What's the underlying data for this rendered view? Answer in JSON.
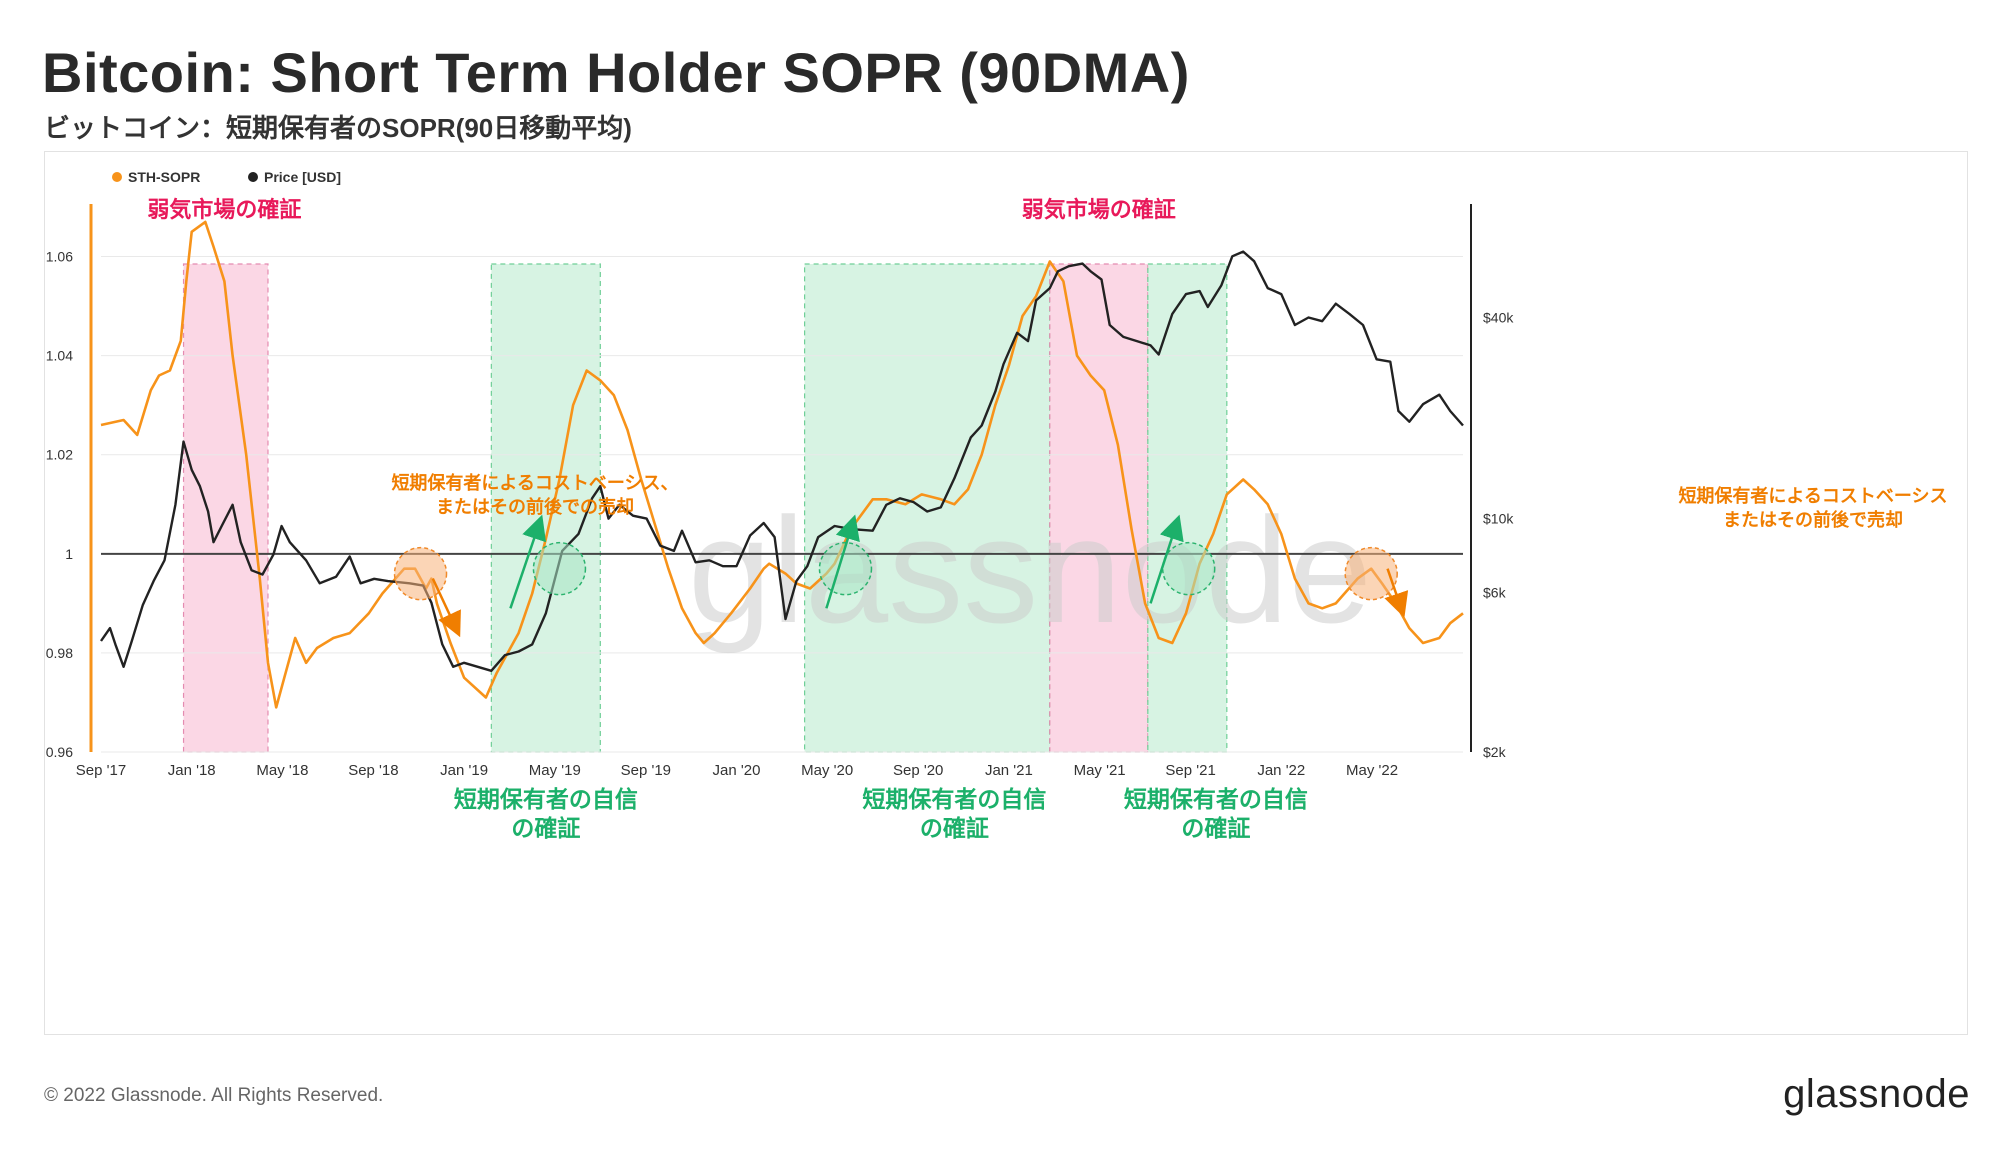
{
  "header": {
    "title": "Bitcoin: Short Term Holder SOPR (90DMA)",
    "subtitle": "ビットコイン：短期保有者のSOPR(90日移動平均)"
  },
  "footer": {
    "copyright": "© 2022 Glassnode. All Rights Reserved.",
    "logo": "glassnode"
  },
  "chart_data": {
    "type": "line",
    "title": "Bitcoin: Short Term Holder SOPR (90DMA)",
    "watermark": "glassnode",
    "x_range": [
      2017.667,
      2022.667
    ],
    "xticks": [
      {
        "label": "Sep '17",
        "t": 2017.667
      },
      {
        "label": "Jan '18",
        "t": 2018.0
      },
      {
        "label": "May '18",
        "t": 2018.333
      },
      {
        "label": "Sep '18",
        "t": 2018.667
      },
      {
        "label": "Jan '19",
        "t": 2019.0
      },
      {
        "label": "May '19",
        "t": 2019.333
      },
      {
        "label": "Sep '19",
        "t": 2019.667
      },
      {
        "label": "Jan '20",
        "t": 2020.0
      },
      {
        "label": "May '20",
        "t": 2020.333
      },
      {
        "label": "Sep '20",
        "t": 2020.667
      },
      {
        "label": "Jan '21",
        "t": 2021.0
      },
      {
        "label": "May '21",
        "t": 2021.333
      },
      {
        "label": "Sep '21",
        "t": 2021.667
      },
      {
        "label": "Jan '22",
        "t": 2022.0
      },
      {
        "label": "May '22",
        "t": 2022.333
      }
    ],
    "left_axis": {
      "ylim": [
        0.96,
        1.07
      ],
      "ticks": [
        {
          "v": 0.96,
          "label": "0.96"
        },
        {
          "v": 0.98,
          "label": "0.98"
        },
        {
          "v": 1.0,
          "label": "1"
        },
        {
          "v": 1.02,
          "label": "1.02"
        },
        {
          "v": 1.04,
          "label": "1.04"
        },
        {
          "v": 1.06,
          "label": "1.06"
        }
      ]
    },
    "right_axis": {
      "scale": "log",
      "ylim": [
        2000,
        80000
      ],
      "ticks": [
        {
          "v": 2000,
          "label": "$2k"
        },
        {
          "v": 6000,
          "label": "$6k"
        },
        {
          "v": 10000,
          "label": "$10k"
        },
        {
          "v": 40000,
          "label": "$40k"
        }
      ]
    },
    "reference_line": 1.0,
    "legend": [
      {
        "name": "STH-SOPR",
        "color": "#f7931a"
      },
      {
        "name": "Price [USD]",
        "color": "#222222"
      }
    ],
    "series": [
      {
        "name": "STH-SOPR",
        "color": "#f7931a",
        "axis": "left",
        "points": [
          [
            2017.667,
            1.026
          ],
          [
            2017.75,
            1.027
          ],
          [
            2017.8,
            1.024
          ],
          [
            2017.85,
            1.033
          ],
          [
            2017.88,
            1.036
          ],
          [
            2017.92,
            1.037
          ],
          [
            2017.96,
            1.043
          ],
          [
            2017.98,
            1.055
          ],
          [
            2018.0,
            1.065
          ],
          [
            2018.05,
            1.067
          ],
          [
            2018.08,
            1.062
          ],
          [
            2018.12,
            1.055
          ],
          [
            2018.15,
            1.04
          ],
          [
            2018.2,
            1.02
          ],
          [
            2018.25,
            0.995
          ],
          [
            2018.28,
            0.978
          ],
          [
            2018.31,
            0.969
          ],
          [
            2018.34,
            0.975
          ],
          [
            2018.38,
            0.983
          ],
          [
            2018.42,
            0.978
          ],
          [
            2018.46,
            0.981
          ],
          [
            2018.52,
            0.983
          ],
          [
            2018.58,
            0.984
          ],
          [
            2018.65,
            0.988
          ],
          [
            2018.7,
            0.992
          ],
          [
            2018.78,
            0.997
          ],
          [
            2018.82,
            0.997
          ],
          [
            2018.86,
            0.993
          ],
          [
            2018.88,
            0.995
          ],
          [
            2018.9,
            0.99
          ],
          [
            2018.95,
            0.982
          ],
          [
            2019.0,
            0.975
          ],
          [
            2019.08,
            0.971
          ],
          [
            2019.12,
            0.976
          ],
          [
            2019.2,
            0.984
          ],
          [
            2019.25,
            0.992
          ],
          [
            2019.3,
            1.003
          ],
          [
            2019.35,
            1.015
          ],
          [
            2019.4,
            1.03
          ],
          [
            2019.45,
            1.037
          ],
          [
            2019.5,
            1.035
          ],
          [
            2019.55,
            1.032
          ],
          [
            2019.6,
            1.025
          ],
          [
            2019.65,
            1.015
          ],
          [
            2019.7,
            1.006
          ],
          [
            2019.75,
            0.997
          ],
          [
            2019.8,
            0.989
          ],
          [
            2019.85,
            0.984
          ],
          [
            2019.88,
            0.982
          ],
          [
            2019.92,
            0.984
          ],
          [
            2019.98,
            0.988
          ],
          [
            2020.05,
            0.993
          ],
          [
            2020.1,
            0.997
          ],
          [
            2020.12,
            0.998
          ],
          [
            2020.18,
            0.996
          ],
          [
            2020.22,
            0.994
          ],
          [
            2020.27,
            0.993
          ],
          [
            2020.33,
            0.996
          ],
          [
            2020.36,
            0.998
          ],
          [
            2020.42,
            1.005
          ],
          [
            2020.5,
            1.011
          ],
          [
            2020.55,
            1.011
          ],
          [
            2020.62,
            1.01
          ],
          [
            2020.68,
            1.012
          ],
          [
            2020.75,
            1.011
          ],
          [
            2020.8,
            1.01
          ],
          [
            2020.85,
            1.013
          ],
          [
            2020.9,
            1.02
          ],
          [
            2020.95,
            1.03
          ],
          [
            2021.0,
            1.038
          ],
          [
            2021.05,
            1.048
          ],
          [
            2021.1,
            1.052
          ],
          [
            2021.15,
            1.059
          ],
          [
            2021.2,
            1.055
          ],
          [
            2021.25,
            1.04
          ],
          [
            2021.3,
            1.036
          ],
          [
            2021.35,
            1.033
          ],
          [
            2021.4,
            1.022
          ],
          [
            2021.45,
            1.005
          ],
          [
            2021.5,
            0.99
          ],
          [
            2021.55,
            0.983
          ],
          [
            2021.6,
            0.982
          ],
          [
            2021.65,
            0.988
          ],
          [
            2021.7,
            0.998
          ],
          [
            2021.75,
            1.004
          ],
          [
            2021.8,
            1.012
          ],
          [
            2021.86,
            1.015
          ],
          [
            2021.9,
            1.013
          ],
          [
            2021.95,
            1.01
          ],
          [
            2022.0,
            1.004
          ],
          [
            2022.05,
            0.995
          ],
          [
            2022.1,
            0.99
          ],
          [
            2022.15,
            0.989
          ],
          [
            2022.2,
            0.99
          ],
          [
            2022.28,
            0.995
          ],
          [
            2022.33,
            0.997
          ],
          [
            2022.37,
            0.994
          ],
          [
            2022.42,
            0.99
          ],
          [
            2022.47,
            0.985
          ],
          [
            2022.52,
            0.982
          ],
          [
            2022.58,
            0.983
          ],
          [
            2022.62,
            0.986
          ],
          [
            2022.667,
            0.988
          ]
        ]
      },
      {
        "name": "Price [USD]",
        "color": "#222222",
        "axis": "right",
        "points": [
          [
            2017.667,
            4300
          ],
          [
            2017.7,
            4700
          ],
          [
            2017.72,
            4200
          ],
          [
            2017.75,
            3600
          ],
          [
            2017.78,
            4300
          ],
          [
            2017.82,
            5500
          ],
          [
            2017.86,
            6500
          ],
          [
            2017.9,
            7500
          ],
          [
            2017.94,
            11000
          ],
          [
            2017.97,
            17000
          ],
          [
            2018.0,
            14000
          ],
          [
            2018.03,
            12500
          ],
          [
            2018.06,
            10500
          ],
          [
            2018.08,
            8500
          ],
          [
            2018.11,
            9500
          ],
          [
            2018.15,
            11000
          ],
          [
            2018.18,
            8500
          ],
          [
            2018.22,
            7000
          ],
          [
            2018.26,
            6800
          ],
          [
            2018.3,
            7800
          ],
          [
            2018.33,
            9500
          ],
          [
            2018.36,
            8500
          ],
          [
            2018.42,
            7500
          ],
          [
            2018.47,
            6400
          ],
          [
            2018.53,
            6700
          ],
          [
            2018.58,
            7700
          ],
          [
            2018.62,
            6400
          ],
          [
            2018.67,
            6600
          ],
          [
            2018.72,
            6500
          ],
          [
            2018.8,
            6400
          ],
          [
            2018.85,
            6300
          ],
          [
            2018.88,
            5600
          ],
          [
            2018.92,
            4200
          ],
          [
            2018.96,
            3600
          ],
          [
            2019.0,
            3700
          ],
          [
            2019.05,
            3600
          ],
          [
            2019.1,
            3500
          ],
          [
            2019.15,
            3900
          ],
          [
            2019.2,
            4000
          ],
          [
            2019.25,
            4200
          ],
          [
            2019.3,
            5200
          ],
          [
            2019.36,
            8000
          ],
          [
            2019.42,
            9000
          ],
          [
            2019.47,
            11500
          ],
          [
            2019.5,
            12500
          ],
          [
            2019.53,
            10000
          ],
          [
            2019.57,
            11000
          ],
          [
            2019.62,
            10200
          ],
          [
            2019.67,
            10000
          ],
          [
            2019.72,
            8300
          ],
          [
            2019.77,
            8000
          ],
          [
            2019.8,
            9200
          ],
          [
            2019.85,
            7400
          ],
          [
            2019.9,
            7500
          ],
          [
            2019.95,
            7200
          ],
          [
            2020.0,
            7200
          ],
          [
            2020.05,
            8900
          ],
          [
            2020.1,
            9700
          ],
          [
            2020.14,
            8800
          ],
          [
            2020.18,
            5000
          ],
          [
            2020.22,
            6500
          ],
          [
            2020.26,
            7200
          ],
          [
            2020.3,
            8800
          ],
          [
            2020.36,
            9500
          ],
          [
            2020.42,
            9300
          ],
          [
            2020.5,
            9200
          ],
          [
            2020.55,
            11000
          ],
          [
            2020.6,
            11500
          ],
          [
            2020.65,
            11200
          ],
          [
            2020.7,
            10500
          ],
          [
            2020.75,
            10800
          ],
          [
            2020.8,
            13200
          ],
          [
            2020.86,
            17500
          ],
          [
            2020.9,
            19000
          ],
          [
            2020.95,
            24000
          ],
          [
            2020.98,
            29000
          ],
          [
            2021.03,
            36000
          ],
          [
            2021.07,
            34000
          ],
          [
            2021.1,
            45000
          ],
          [
            2021.15,
            49000
          ],
          [
            2021.18,
            55000
          ],
          [
            2021.22,
            57000
          ],
          [
            2021.27,
            58000
          ],
          [
            2021.3,
            55000
          ],
          [
            2021.34,
            52000
          ],
          [
            2021.37,
            38000
          ],
          [
            2021.42,
            35000
          ],
          [
            2021.47,
            34000
          ],
          [
            2021.52,
            33000
          ],
          [
            2021.55,
            31000
          ],
          [
            2021.6,
            41000
          ],
          [
            2021.65,
            47000
          ],
          [
            2021.7,
            48000
          ],
          [
            2021.73,
            43000
          ],
          [
            2021.78,
            50000
          ],
          [
            2021.82,
            61000
          ],
          [
            2021.86,
            63000
          ],
          [
            2021.9,
            59000
          ],
          [
            2021.95,
            49000
          ],
          [
            2022.0,
            47000
          ],
          [
            2022.05,
            38000
          ],
          [
            2022.1,
            40000
          ],
          [
            2022.15,
            39000
          ],
          [
            2022.2,
            44000
          ],
          [
            2022.25,
            41000
          ],
          [
            2022.3,
            38000
          ],
          [
            2022.35,
            30000
          ],
          [
            2022.4,
            29500
          ],
          [
            2022.43,
            21000
          ],
          [
            2022.47,
            19500
          ],
          [
            2022.52,
            22000
          ],
          [
            2022.58,
            23500
          ],
          [
            2022.62,
            21000
          ],
          [
            2022.667,
            19000
          ]
        ]
      }
    ],
    "shaded_regions": [
      {
        "kind": "bear",
        "color": "#f9c9dc",
        "from": 2017.97,
        "to": 2018.28
      },
      {
        "kind": "confidence",
        "color": "#c9efd9",
        "from": 2019.1,
        "to": 2019.5
      },
      {
        "kind": "confidence",
        "color": "#c9efd9",
        "from": 2020.25,
        "to": 2021.15
      },
      {
        "kind": "bear",
        "color": "#f9c9dc",
        "from": 2021.15,
        "to": 2021.51
      },
      {
        "kind": "confidence",
        "color": "#c9efd9",
        "from": 2021.51,
        "to": 2021.8
      }
    ],
    "annotations": {
      "bear": {
        "text": "弱気市場の確証",
        "color": "#e8195a"
      },
      "cost_basis_1": {
        "lines": [
          "短期保有者によるコストベーシス、",
          "またはその前後での売却"
        ],
        "color": "#f07e00"
      },
      "cost_basis_2": {
        "lines": [
          "短期保有者によるコストベーシス",
          "またはその前後で売却"
        ],
        "color": "#f07e00"
      },
      "confidence": {
        "lines": [
          "短期保有者の自信",
          "の確証"
        ],
        "color": "#1cb06a"
      }
    }
  }
}
